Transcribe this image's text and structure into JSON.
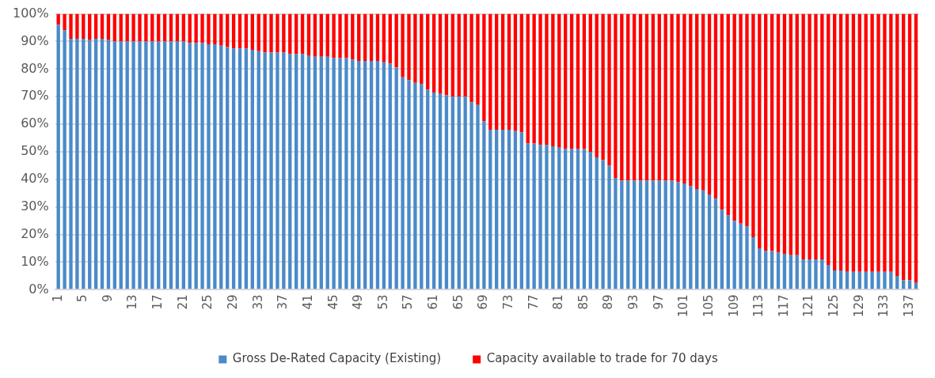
{
  "chart_data": {
    "type": "bar",
    "stacked": true,
    "categories": [
      "1",
      null,
      null,
      null,
      "5",
      null,
      null,
      null,
      "9",
      null,
      null,
      null,
      "13",
      null,
      null,
      null,
      "17",
      null,
      null,
      null,
      "21",
      null,
      null,
      null,
      "25",
      null,
      null,
      null,
      "29",
      null,
      null,
      null,
      "33",
      null,
      null,
      null,
      "37",
      null,
      null,
      null,
      "41",
      null,
      null,
      null,
      "45",
      null,
      null,
      null,
      "49",
      null,
      null,
      null,
      "53",
      null,
      null,
      null,
      "57",
      null,
      null,
      null,
      "61",
      null,
      null,
      null,
      "65",
      null,
      null,
      null,
      "69",
      null,
      null,
      null,
      "73",
      null,
      null,
      null,
      "77",
      null,
      null,
      null,
      "81",
      null,
      null,
      null,
      "85",
      null,
      null,
      null,
      "89",
      null,
      null,
      null,
      "93",
      null,
      null,
      null,
      "97",
      null,
      null,
      null,
      "101",
      null,
      null,
      null,
      "105",
      null,
      null,
      null,
      "109",
      null,
      null,
      null,
      "113",
      null,
      null,
      null,
      "117",
      null,
      null,
      null,
      "121",
      null,
      null,
      null,
      "125",
      null,
      null,
      null,
      "129",
      null,
      null,
      null,
      "133",
      null,
      null,
      null,
      "137",
      null
    ],
    "series": [
      {
        "name": "Gross De-Rated Capacity (Existing)",
        "color": "#4a8ac9",
        "values": [
          96,
          94,
          91,
          91,
          91,
          90.5,
          91,
          91,
          90.5,
          90,
          90,
          90,
          90,
          90,
          90,
          90,
          90,
          90,
          90,
          90,
          90,
          89.5,
          89.5,
          89.5,
          89,
          89,
          88.5,
          88,
          87.5,
          87.5,
          87.5,
          87,
          86.5,
          86,
          86,
          86,
          86,
          85.5,
          85.5,
          85.5,
          85,
          84.5,
          84.5,
          84.5,
          84,
          84,
          84,
          83.5,
          83,
          83,
          83,
          83,
          82.5,
          82,
          80.5,
          77,
          76,
          75,
          74.5,
          72.5,
          71.5,
          71,
          70.5,
          70,
          70,
          70,
          68,
          67,
          61,
          58,
          58,
          58,
          58,
          57.5,
          57,
          53,
          53,
          52.5,
          52.5,
          52,
          51.5,
          51,
          51,
          51,
          51,
          50,
          48,
          47,
          45,
          40.5,
          39.5,
          39.5,
          39.5,
          39.5,
          39.5,
          39.5,
          39.5,
          39.5,
          39.5,
          39,
          38.5,
          37.5,
          36.5,
          36,
          34.5,
          33,
          29,
          27,
          25,
          24,
          23,
          19,
          15,
          14,
          14,
          13.5,
          13,
          12.5,
          12.5,
          11,
          11,
          11,
          11,
          9,
          7,
          7,
          6.5,
          6.5,
          6.5,
          6.5,
          6.5,
          6.5,
          6.5,
          6.5,
          5,
          3.5,
          3.5,
          2.5
        ]
      },
      {
        "name": "Capacity available to trade for 70 days",
        "color": "#ff0000",
        "values": [
          4,
          6,
          9,
          9,
          9,
          9.5,
          9,
          9,
          9.5,
          10,
          10,
          10,
          10,
          10,
          10,
          10,
          10,
          10,
          10,
          10,
          10,
          10.5,
          10.5,
          10.5,
          11,
          11,
          11.5,
          12,
          12.5,
          12.5,
          12.5,
          13,
          13.5,
          14,
          14,
          14,
          14,
          14.5,
          14.5,
          14.5,
          15,
          15.5,
          15.5,
          15.5,
          16,
          16,
          16,
          16.5,
          17,
          17,
          17,
          17,
          17.5,
          18,
          19.5,
          23,
          24,
          25,
          25.5,
          27.5,
          28.5,
          29,
          29.5,
          30,
          30,
          30,
          32,
          33,
          39,
          42,
          42,
          42,
          42,
          42.5,
          43,
          47,
          47,
          47.5,
          47.5,
          48,
          48.5,
          49,
          49,
          49,
          49,
          50,
          52,
          53,
          55,
          59.5,
          60.5,
          60.5,
          60.5,
          60.5,
          60.5,
          60.5,
          60.5,
          60.5,
          60.5,
          61,
          61.5,
          62.5,
          63.5,
          64,
          65.5,
          67,
          71,
          73,
          75,
          76,
          77,
          81,
          85,
          86,
          86,
          86.5,
          87,
          87.5,
          87.5,
          89,
          89,
          89,
          89,
          91,
          93,
          93,
          93.5,
          93.5,
          93.5,
          93.5,
          93.5,
          93.5,
          93.5,
          93.5,
          95,
          96.5,
          96.5,
          97.5
        ]
      }
    ],
    "ylim": [
      0,
      100
    ],
    "yticks": [
      {
        "value": 0,
        "label": "0%"
      },
      {
        "value": 10,
        "label": "10%"
      },
      {
        "value": 20,
        "label": "20%"
      },
      {
        "value": 30,
        "label": "30%"
      },
      {
        "value": 40,
        "label": "40%"
      },
      {
        "value": 50,
        "label": "50%"
      },
      {
        "value": 60,
        "label": "60%"
      },
      {
        "value": 70,
        "label": "70%"
      },
      {
        "value": 80,
        "label": "80%"
      },
      {
        "value": 90,
        "label": "90%"
      },
      {
        "value": 100,
        "label": "100%"
      }
    ],
    "grid": "y",
    "legend": "bottom"
  }
}
